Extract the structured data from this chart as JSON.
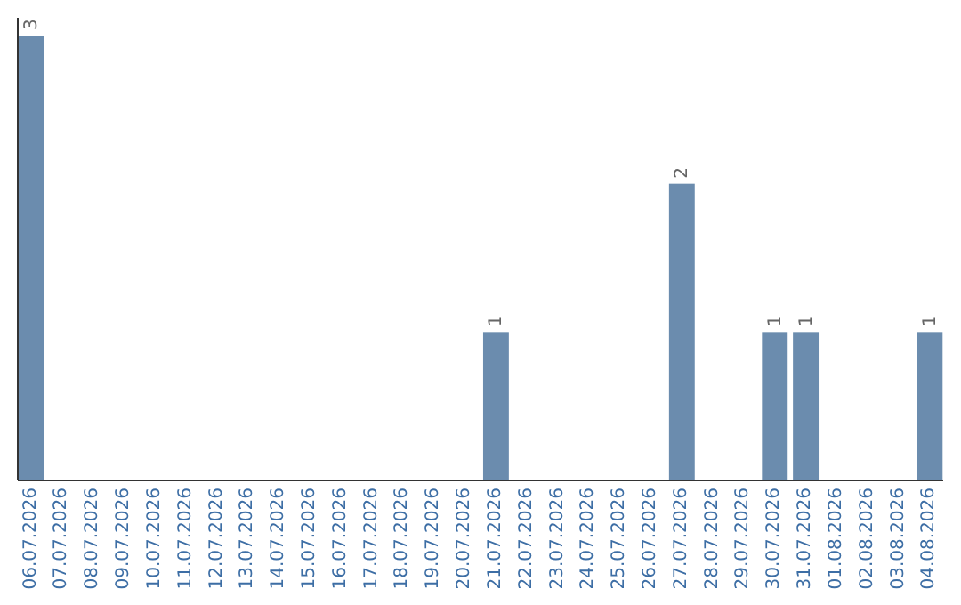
{
  "chart_data": {
    "type": "bar",
    "categories": [
      "06.07.2026",
      "07.07.2026",
      "08.07.2026",
      "09.07.2026",
      "10.07.2026",
      "11.07.2026",
      "12.07.2026",
      "13.07.2026",
      "14.07.2026",
      "15.07.2026",
      "16.07.2026",
      "17.07.2026",
      "18.07.2026",
      "19.07.2026",
      "20.07.2026",
      "21.07.2026",
      "22.07.2026",
      "23.07.2026",
      "24.07.2026",
      "25.07.2026",
      "26.07.2026",
      "27.07.2026",
      "28.07.2026",
      "29.07.2026",
      "30.07.2026",
      "31.07.2026",
      "01.08.2026",
      "02.08.2026",
      "03.08.2026",
      "04.08.2026"
    ],
    "values": [
      3,
      0,
      0,
      0,
      0,
      0,
      0,
      0,
      0,
      0,
      0,
      0,
      0,
      0,
      0,
      1,
      0,
      0,
      0,
      0,
      0,
      2,
      0,
      0,
      1,
      1,
      0,
      0,
      0,
      1
    ],
    "value_labels": [
      "3",
      null,
      null,
      null,
      null,
      null,
      null,
      null,
      null,
      null,
      null,
      null,
      null,
      null,
      null,
      "1",
      null,
      null,
      null,
      null,
      null,
      "2",
      null,
      null,
      "1",
      "1",
      null,
      null,
      null,
      "1"
    ],
    "color": "#6b8cae"
  }
}
